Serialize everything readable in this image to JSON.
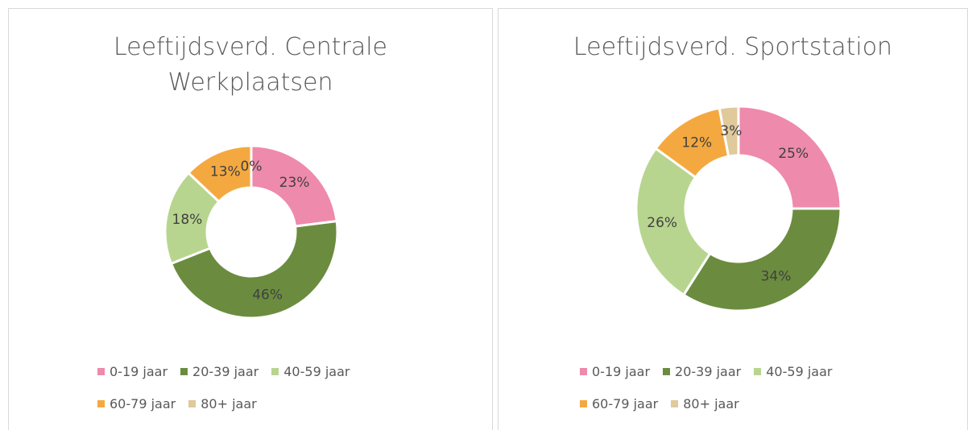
{
  "chart_data": [
    {
      "type": "donut",
      "title": "Leeftijdsverd. Centrale Werkplaatsen",
      "categories": [
        "0-19 jaar",
        "20-39 jaar",
        "40-59 jaar",
        "60-79 jaar",
        "80+ jaar"
      ],
      "values": [
        23,
        46,
        18,
        13,
        0
      ],
      "value_labels": [
        "23%",
        "46%",
        "18%",
        "13%",
        "0%"
      ],
      "colors": [
        "#ee8aab",
        "#6b8c3f",
        "#b8d58f",
        "#f4a940",
        "#e0c99a"
      ],
      "legend": "bottom"
    },
    {
      "type": "donut",
      "title": "Leeftijdsverd. Sportstation",
      "categories": [
        "0-19 jaar",
        "20-39 jaar",
        "40-59 jaar",
        "60-79 jaar",
        "80+ jaar"
      ],
      "values": [
        25,
        34,
        26,
        12,
        3
      ],
      "value_labels": [
        "25%",
        "34%",
        "26%",
        "12%",
        "3%"
      ],
      "colors": [
        "#ee8aab",
        "#6b8c3f",
        "#b8d58f",
        "#f4a940",
        "#e0c99a"
      ],
      "legend": "bottom"
    }
  ]
}
